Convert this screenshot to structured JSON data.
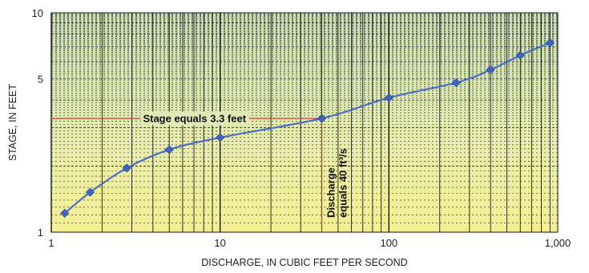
{
  "chart_data": {
    "type": "line",
    "x_scale": "log",
    "y_scale": "log",
    "xlabel": "DISCHARGE, IN CUBIC FEET PER SECOND",
    "ylabel": "STAGE, IN FEET",
    "xlim": [
      1,
      1000
    ],
    "ylim": [
      1,
      10
    ],
    "x_tick_labels": [
      "1",
      "10",
      "100",
      "1,000"
    ],
    "x_tick_values": [
      1,
      10,
      100,
      1000
    ],
    "y_tick_labels": [
      "1",
      "5",
      "10"
    ],
    "y_tick_values": [
      1,
      5,
      10
    ],
    "grid": true,
    "series": [
      {
        "color": "#4a6fc0",
        "marker_color": "#3f64bf",
        "points": [
          {
            "x": 1.2,
            "y": 1.22
          },
          {
            "x": 1.7,
            "y": 1.52
          },
          {
            "x": 2.8,
            "y": 1.96
          },
          {
            "x": 5,
            "y": 2.38
          },
          {
            "x": 10,
            "y": 2.7
          },
          {
            "x": 40,
            "y": 3.3
          },
          {
            "x": 100,
            "y": 4.1
          },
          {
            "x": 250,
            "y": 4.8
          },
          {
            "x": 400,
            "y": 5.5
          },
          {
            "x": 600,
            "y": 6.4
          },
          {
            "x": 900,
            "y": 7.3
          }
        ]
      }
    ],
    "annotations": [
      {
        "text": "Stage equals 3.3 feet",
        "x": 40,
        "y": 3.3,
        "orientation": "horizontal"
      },
      {
        "text_line1": "Discharge",
        "text_line2": "equals 40 ft³/s",
        "x": 40,
        "y": 3.3,
        "orientation": "vertical"
      }
    ],
    "reference_line_color": "#e02020",
    "background_gradient": [
      "#c8e0b4",
      "#e6ecb0",
      "#f5f090"
    ]
  }
}
